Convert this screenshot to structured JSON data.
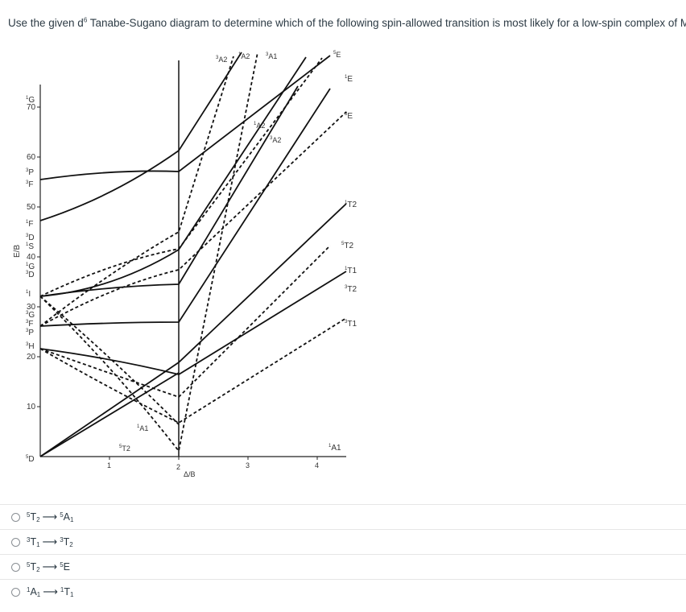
{
  "question": {
    "before": "Use the given d",
    "superscript": "6",
    "after": " Tanabe-Sugano diagram to determine which of the following spin-allowed transition is most likely for a low-spin complex of Mn(I)?"
  },
  "diagram": {
    "y_axis_label": "E/B",
    "x_axis_label": "Δ/B",
    "y_ticks": [
      "10",
      "20",
      "30",
      "40",
      "50",
      "60",
      "70"
    ],
    "x_ticks": [
      "1",
      "2",
      "3",
      "4"
    ],
    "left_terms": [
      {
        "sup": "1",
        "sym": "G"
      },
      {
        "sup": "3",
        "sym": "P"
      },
      {
        "sup": "3",
        "sym": "F"
      },
      {
        "sup": "1",
        "sym": "F"
      },
      {
        "sup": "3",
        "sym": "D"
      },
      {
        "sup": "1",
        "sym": "S"
      },
      {
        "sup": "1",
        "sym": "G"
      },
      {
        "sup": "3",
        "sym": "D"
      },
      {
        "sup": "1",
        "sym": "I"
      },
      {
        "sup": "3",
        "sym": "G"
      },
      {
        "sup": "3",
        "sym": "F"
      },
      {
        "sup": "3",
        "sym": "P"
      },
      {
        "sup": "3",
        "sym": "H"
      },
      {
        "sup": "5",
        "sym": "D"
      }
    ],
    "right_terms": [
      {
        "sup": "1",
        "sym": "E"
      },
      {
        "sup": "3",
        "sym": "E"
      },
      {
        "sup": "1",
        "sym": "T2"
      },
      {
        "sup": "5",
        "sym": "T2"
      },
      {
        "sup": "1",
        "sym": "T1"
      },
      {
        "sup": "3",
        "sym": "T2"
      },
      {
        "sup": "3",
        "sym": "T1"
      },
      {
        "sup": "1",
        "sym": "A1"
      }
    ],
    "top_terms": [
      {
        "sup": "3",
        "sym": "A2"
      },
      {
        "sup": "1",
        "sym": "A2"
      },
      {
        "sup": "3",
        "sym": "A1"
      },
      {
        "sup": "5",
        "sym": "E"
      }
    ],
    "inner_terms": [
      {
        "sup": "1",
        "sym": "A2"
      },
      {
        "sup": "3",
        "sym": "A2"
      },
      {
        "sup": "1",
        "sym": "A1"
      },
      {
        "sup": "5",
        "sym": "T2"
      }
    ]
  },
  "options": [
    {
      "from_sup": "5",
      "from_sym": "T",
      "from_sub": "2",
      "to_sup": "5",
      "to_sym": "A",
      "to_sub": "1",
      "arrow": "⟶"
    },
    {
      "from_sup": "3",
      "from_sym": "T",
      "from_sub": "1",
      "to_sup": "3",
      "to_sym": "T",
      "to_sub": "2",
      "arrow": "⟶"
    },
    {
      "from_sup": "5",
      "from_sym": "T",
      "from_sub": "2",
      "to_sup": "5",
      "to_sym": "E",
      "to_sub": "",
      "arrow": "⟶"
    },
    {
      "from_sup": "1",
      "from_sym": "A",
      "from_sub": "1",
      "to_sup": "1",
      "to_sym": "T",
      "to_sub": "1",
      "arrow": "⟶"
    }
  ]
}
